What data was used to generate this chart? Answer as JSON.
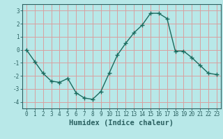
{
  "xlabel": "Humidex (Indice chaleur)",
  "ylabel": "",
  "x": [
    0,
    1,
    2,
    3,
    4,
    5,
    6,
    7,
    8,
    9,
    10,
    11,
    12,
    13,
    14,
    15,
    16,
    17,
    18,
    19,
    20,
    21,
    22,
    23
  ],
  "y": [
    0.0,
    -0.9,
    -1.8,
    -2.4,
    -2.5,
    -2.2,
    -3.3,
    -3.7,
    -3.8,
    -3.2,
    -1.8,
    -0.4,
    0.5,
    1.3,
    1.9,
    2.8,
    2.8,
    2.4,
    -0.1,
    -0.1,
    -0.6,
    -1.2,
    -1.8,
    -1.9
  ],
  "line_color": "#1a6b5e",
  "marker": "+",
  "marker_size": 4,
  "background_color": "#b8e8e8",
  "grid_color": "#d8a0a0",
  "axis_color": "#2a6060",
  "ylim": [
    -4.5,
    3.5
  ],
  "xlim": [
    -0.5,
    23.5
  ],
  "yticks": [
    -4,
    -3,
    -2,
    -1,
    0,
    1,
    2,
    3
  ],
  "xticks": [
    0,
    1,
    2,
    3,
    4,
    5,
    6,
    7,
    8,
    9,
    10,
    11,
    12,
    13,
    14,
    15,
    16,
    17,
    18,
    19,
    20,
    21,
    22,
    23
  ],
  "tick_label_fontsize": 5.5,
  "xlabel_fontsize": 7.5
}
